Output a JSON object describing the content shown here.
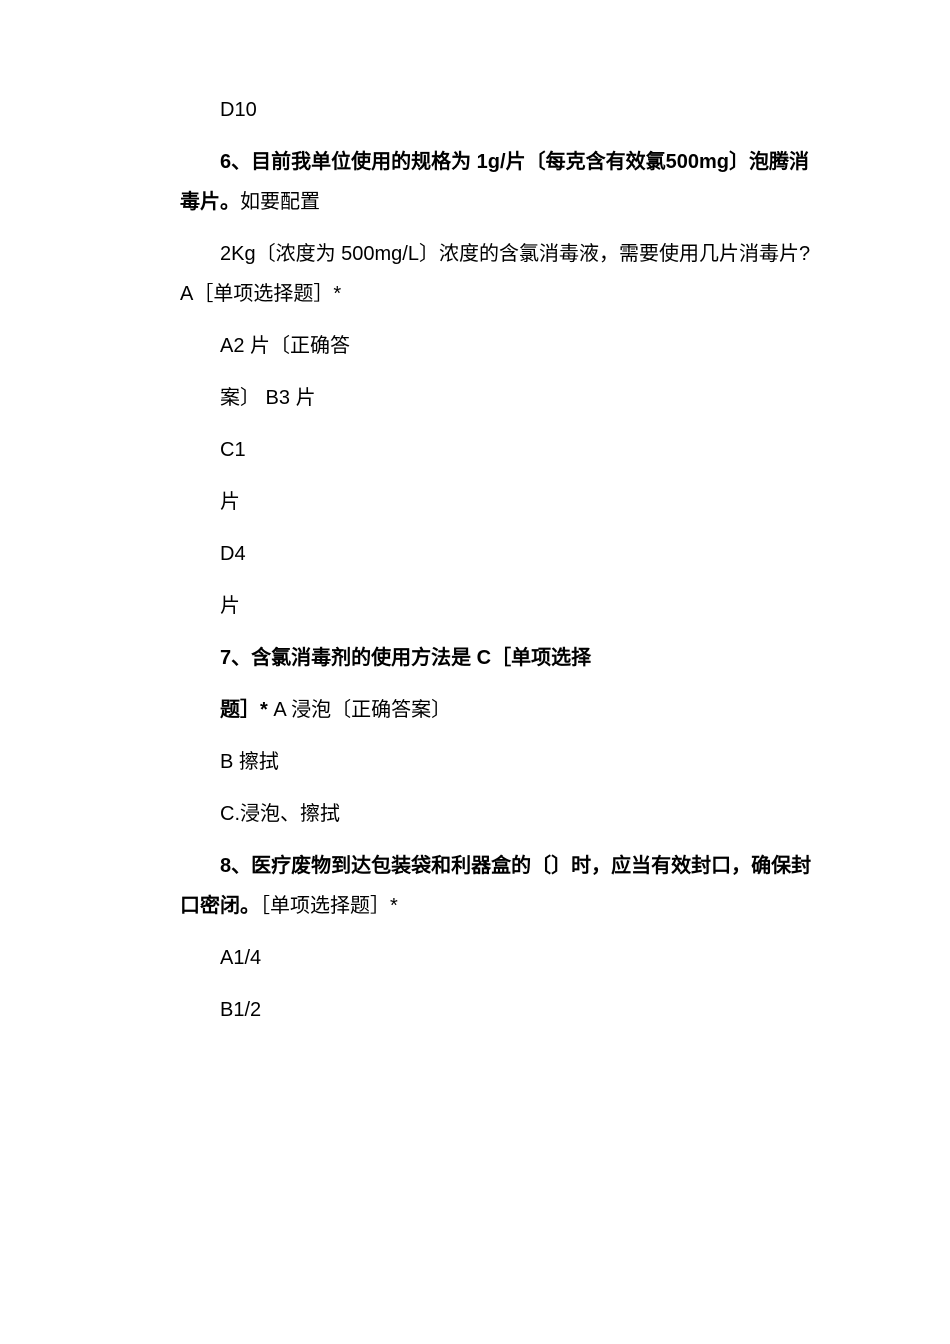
{
  "document": {
    "q5_option_d": "D10",
    "q6": {
      "stem_bold": "6、目前我单位使用的规格为 1g/片〔每克含有效氯500mg〕泡腾消毒片。",
      "stem_normal": "如要配置",
      "detail": "2Kg〔浓度为 500mg/L〕浓度的含氯消毒液，需要使用几片消毒片?A［单项选择题］*",
      "opt_a": "A2 片〔正确答",
      "opt_a2": "案〕 B3 片",
      "opt_c1": "C1",
      "opt_c2": "片",
      "opt_d1": "D4",
      "opt_d2": "片"
    },
    "q7": {
      "stem_bold": "7、含氯消毒剂的使用方法是   C［单项选择",
      "stem_bold2": "题］*",
      "stem_normal": " A 浸泡〔正确答案〕",
      "opt_b": "B 擦拭",
      "opt_c": "C.浸泡、擦拭"
    },
    "q8": {
      "stem_bold": "8、医疗废物到达包装袋和利器盒的〔〕时，应当有效封口，确保封口密闭。",
      "stem_normal": "［单项选择题］*",
      "opt_a": "A1/4",
      "opt_b": "B1/2"
    }
  }
}
